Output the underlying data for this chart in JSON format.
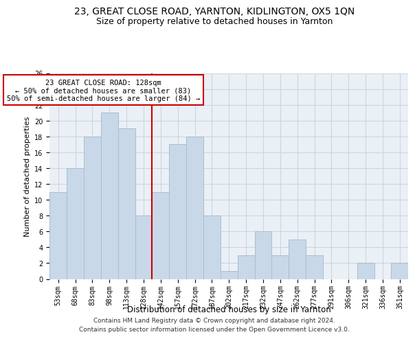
{
  "title1": "23, GREAT CLOSE ROAD, YARNTON, KIDLINGTON, OX5 1QN",
  "title2": "Size of property relative to detached houses in Yarnton",
  "xlabel": "Distribution of detached houses by size in Yarnton",
  "ylabel": "Number of detached properties",
  "footer1": "Contains HM Land Registry data © Crown copyright and database right 2024.",
  "footer2": "Contains public sector information licensed under the Open Government Licence v3.0.",
  "categories": [
    "53sqm",
    "68sqm",
    "83sqm",
    "98sqm",
    "113sqm",
    "128sqm",
    "142sqm",
    "157sqm",
    "172sqm",
    "187sqm",
    "202sqm",
    "217sqm",
    "232sqm",
    "247sqm",
    "262sqm",
    "277sqm",
    "291sqm",
    "306sqm",
    "321sqm",
    "336sqm",
    "351sqm"
  ],
  "values": [
    11,
    14,
    18,
    21,
    19,
    8,
    11,
    17,
    18,
    8,
    1,
    3,
    6,
    3,
    5,
    3,
    0,
    0,
    2,
    0,
    2
  ],
  "bar_color": "#c8d8e8",
  "bar_edge_color": "#a8bece",
  "red_line_color": "#cc0000",
  "annotation_line1": "23 GREAT CLOSE ROAD: 128sqm",
  "annotation_line2": "← 50% of detached houses are smaller (83)",
  "annotation_line3": "50% of semi-detached houses are larger (84) →",
  "annotation_box_color": "#ffffff",
  "annotation_box_edge": "#cc0000",
  "ylim": [
    0,
    26
  ],
  "yticks": [
    0,
    2,
    4,
    6,
    8,
    10,
    12,
    14,
    16,
    18,
    20,
    22,
    24,
    26
  ],
  "grid_color": "#ccd6e0",
  "background_color": "#eaf0f6",
  "title1_fontsize": 10,
  "title2_fontsize": 9,
  "xlabel_fontsize": 8.5,
  "ylabel_fontsize": 8,
  "tick_fontsize": 7,
  "ann_fontsize": 7.5,
  "footer_fontsize": 6.5
}
